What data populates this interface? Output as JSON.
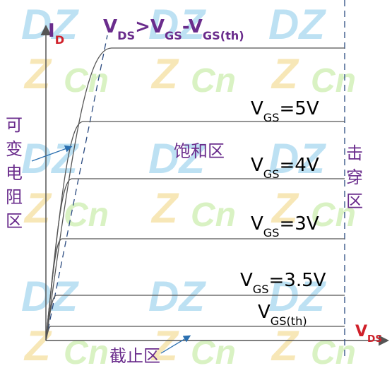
{
  "watermark": {
    "big": "DZ",
    "small": "Cn",
    "z": "Z"
  },
  "axes": {
    "y_label": [
      {
        "text": "I",
        "color": "#6a2c8c"
      },
      {
        "text": "D",
        "sub": true,
        "color": "#d0202a"
      }
    ],
    "x_label": [
      {
        "text": "V",
        "color": "#d0202a"
      },
      {
        "text": "DS",
        "sub": true,
        "color": "#d0202a"
      }
    ]
  },
  "condition": [
    {
      "text": "V"
    },
    {
      "text": "DS",
      "sub": true
    },
    {
      "text": ">V"
    },
    {
      "text": "GS",
      "sub": true
    },
    {
      "text": "-V"
    },
    {
      "text": "GS(th)",
      "sub": true
    }
  ],
  "regions": {
    "variable_resistance": [
      "可",
      "变",
      "电",
      "阻",
      "区"
    ],
    "saturation": "饱和区",
    "breakdown": [
      "击",
      "穿",
      "区"
    ],
    "cutoff": "截止区"
  },
  "curves": [
    {
      "label": null
    },
    {
      "label": [
        {
          "text": "V"
        },
        {
          "text": "GS",
          "sub": true
        },
        {
          "text": "=5V"
        }
      ]
    },
    {
      "label": [
        {
          "text": "V"
        },
        {
          "text": "GS",
          "sub": true
        },
        {
          "text": "=4V"
        }
      ]
    },
    {
      "label": [
        {
          "text": "V"
        },
        {
          "text": "GS",
          "sub": true
        },
        {
          "text": "=3V"
        }
      ]
    },
    {
      "label": [
        {
          "text": "V"
        },
        {
          "text": "GS",
          "sub": true
        },
        {
          "text": "=3.5V"
        }
      ]
    },
    {
      "label": [
        {
          "text": "V"
        },
        {
          "text": "GS(th)",
          "sub": true
        }
      ]
    }
  ]
}
